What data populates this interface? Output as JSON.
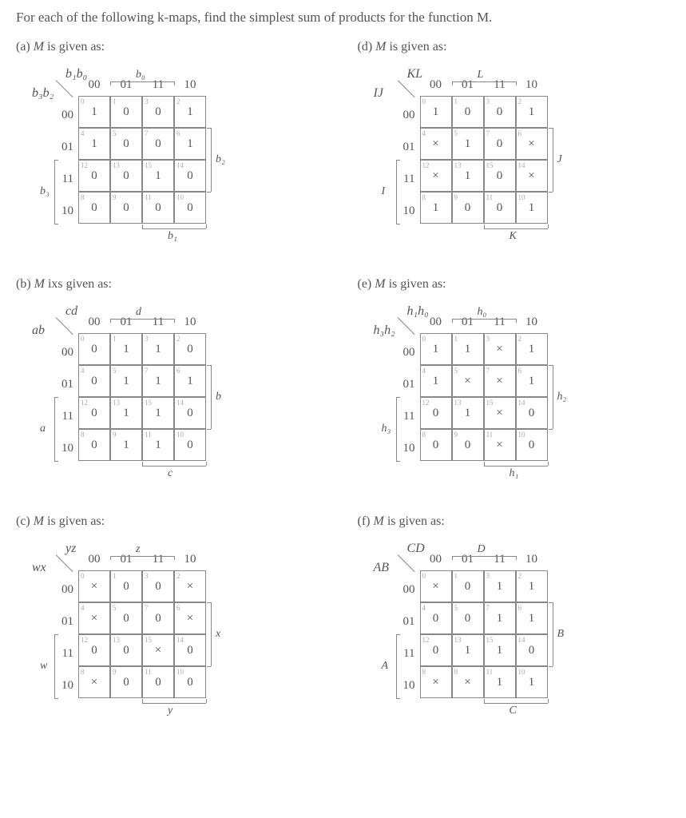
{
  "prompt": "For each of the following k-maps, find the simplest sum of products for the function M.",
  "parts": [
    {
      "id": "a",
      "label": "(a) M is given as:",
      "diagTop": "b₁b₀",
      "diagLeft": "b₃b₂",
      "colHeaders": [
        "00",
        "01",
        "11",
        "10"
      ],
      "rowHeaders": [
        "00",
        "01",
        "11",
        "10"
      ],
      "cells": [
        [
          "1",
          "0",
          "0",
          "1"
        ],
        [
          "1",
          "0",
          "0",
          "1"
        ],
        [
          "0",
          "0",
          "1",
          "0"
        ],
        [
          "0",
          "0",
          "0",
          "0"
        ]
      ],
      "indices": [
        [
          "0",
          "1",
          "3",
          "2"
        ],
        [
          "4",
          "5",
          "7",
          "6"
        ],
        [
          "12",
          "13",
          "15",
          "14"
        ],
        [
          "8",
          "9",
          "11",
          "10"
        ]
      ],
      "topBracket": {
        "label": "b₀",
        "span": [
          1,
          2
        ]
      },
      "rightBracket": {
        "label": "b₂",
        "span": [
          1,
          2
        ]
      },
      "leftBracket": {
        "label": "b₃",
        "span": [
          2,
          3
        ]
      },
      "bottomBracket": {
        "label": "b₁",
        "span": [
          2,
          3
        ]
      }
    },
    {
      "id": "b",
      "label": "(b) M ixs given as:",
      "diagTop": "cd",
      "diagLeft": "ab",
      "colHeaders": [
        "00",
        "01",
        "11",
        "10"
      ],
      "rowHeaders": [
        "00",
        "01",
        "11",
        "10"
      ],
      "cells": [
        [
          "0",
          "1",
          "1",
          "0"
        ],
        [
          "0",
          "1",
          "1",
          "1"
        ],
        [
          "0",
          "1",
          "1",
          "0"
        ],
        [
          "0",
          "1",
          "1",
          "0"
        ]
      ],
      "indices": [
        [
          "0",
          "1",
          "3",
          "2"
        ],
        [
          "4",
          "5",
          "7",
          "6"
        ],
        [
          "12",
          "13",
          "15",
          "14"
        ],
        [
          "8",
          "9",
          "11",
          "10"
        ]
      ],
      "topBracket": {
        "label": "d",
        "span": [
          1,
          2
        ]
      },
      "rightBracket": {
        "label": "b",
        "span": [
          1,
          2
        ]
      },
      "leftBracket": {
        "label": "a",
        "span": [
          2,
          3
        ]
      },
      "bottomBracket": {
        "label": "c",
        "span": [
          2,
          3
        ]
      }
    },
    {
      "id": "c",
      "label": "(c) M is given as:",
      "diagTop": "yz",
      "diagLeft": "wx",
      "colHeaders": [
        "00",
        "01",
        "11",
        "10"
      ],
      "rowHeaders": [
        "00",
        "01",
        "11",
        "10"
      ],
      "cells": [
        [
          "×",
          "0",
          "0",
          "×"
        ],
        [
          "×",
          "0",
          "0",
          "×"
        ],
        [
          "0",
          "0",
          "×",
          "0"
        ],
        [
          "×",
          "0",
          "0",
          "0"
        ]
      ],
      "indices": [
        [
          "0",
          "1",
          "3",
          "2"
        ],
        [
          "4",
          "5",
          "7",
          "6"
        ],
        [
          "12",
          "13",
          "15",
          "14"
        ],
        [
          "8",
          "9",
          "11",
          "10"
        ]
      ],
      "topBracket": {
        "label": "z",
        "span": [
          1,
          2
        ]
      },
      "rightBracket": {
        "label": "x",
        "span": [
          1,
          2
        ]
      },
      "leftBracket": {
        "label": "w",
        "span": [
          2,
          3
        ]
      },
      "bottomBracket": {
        "label": "y",
        "span": [
          2,
          3
        ]
      }
    },
    {
      "id": "d",
      "label": "(d) M is given as:",
      "diagTop": "KL",
      "diagLeft": "IJ",
      "colHeaders": [
        "00",
        "01",
        "11",
        "10"
      ],
      "rowHeaders": [
        "00",
        "01",
        "11",
        "10"
      ],
      "cells": [
        [
          "1",
          "0",
          "0",
          "1"
        ],
        [
          "×",
          "1",
          "0",
          "×"
        ],
        [
          "×",
          "1",
          "0",
          "×"
        ],
        [
          "1",
          "0",
          "0",
          "1"
        ]
      ],
      "indices": [
        [
          "0",
          "1",
          "3",
          "2"
        ],
        [
          "4",
          "5",
          "7",
          "6"
        ],
        [
          "12",
          "13",
          "15",
          "14"
        ],
        [
          "8",
          "9",
          "11",
          "10"
        ]
      ],
      "topBracket": {
        "label": "L",
        "span": [
          1,
          2
        ]
      },
      "rightBracket": {
        "label": "J",
        "span": [
          1,
          2
        ]
      },
      "leftBracket": {
        "label": "I",
        "span": [
          2,
          3
        ]
      },
      "bottomBracket": {
        "label": "K",
        "span": [
          2,
          3
        ]
      }
    },
    {
      "id": "e",
      "label": "(e) M is given as:",
      "diagTop": "h₁h₀",
      "diagLeft": "h₃h₂",
      "colHeaders": [
        "00",
        "01",
        "11",
        "10"
      ],
      "rowHeaders": [
        "00",
        "01",
        "11",
        "10"
      ],
      "cells": [
        [
          "1",
          "1",
          "×",
          "1"
        ],
        [
          "1",
          "×",
          "×",
          "1"
        ],
        [
          "0",
          "1",
          "×",
          "0"
        ],
        [
          "0",
          "0",
          "×",
          "0"
        ]
      ],
      "indices": [
        [
          "0",
          "1",
          "3",
          "2"
        ],
        [
          "4",
          "5",
          "7",
          "6"
        ],
        [
          "12",
          "13",
          "15",
          "14"
        ],
        [
          "8",
          "9",
          "11",
          "10"
        ]
      ],
      "topBracket": {
        "label": "h₀",
        "span": [
          1,
          2
        ]
      },
      "rightBracket": {
        "label": "h₂",
        "span": [
          1,
          2
        ]
      },
      "leftBracket": {
        "label": "h₃",
        "span": [
          2,
          3
        ]
      },
      "bottomBracket": {
        "label": "h₁",
        "span": [
          2,
          3
        ]
      }
    },
    {
      "id": "f",
      "label": "(f) M is given as:",
      "diagTop": "CD",
      "diagLeft": "AB",
      "colHeaders": [
        "00",
        "01",
        "11",
        "10"
      ],
      "rowHeaders": [
        "00",
        "01",
        "11",
        "10"
      ],
      "cells": [
        [
          "×",
          "0",
          "1",
          "1"
        ],
        [
          "0",
          "0",
          "1",
          "1"
        ],
        [
          "0",
          "1",
          "1",
          "0"
        ],
        [
          "×",
          "×",
          "1",
          "1"
        ]
      ],
      "indices": [
        [
          "0",
          "1",
          "3",
          "2"
        ],
        [
          "4",
          "5",
          "7",
          "6"
        ],
        [
          "12",
          "13",
          "15",
          "14"
        ],
        [
          "8",
          "9",
          "11",
          "10"
        ]
      ],
      "topBracket": {
        "label": "D",
        "span": [
          1,
          2
        ]
      },
      "rightBracket": {
        "label": "B",
        "span": [
          1,
          2
        ]
      },
      "leftBracket": {
        "label": "A",
        "span": [
          2,
          3
        ]
      },
      "bottomBracket": {
        "label": "C",
        "span": [
          2,
          3
        ]
      }
    }
  ],
  "colors": {
    "text": "#555555",
    "border": "#888888",
    "indexText": "#aaaaaa",
    "background": "#ffffff"
  },
  "layout": {
    "cellSize": 40,
    "gridOriginX": 28,
    "gridOriginY": 20
  }
}
